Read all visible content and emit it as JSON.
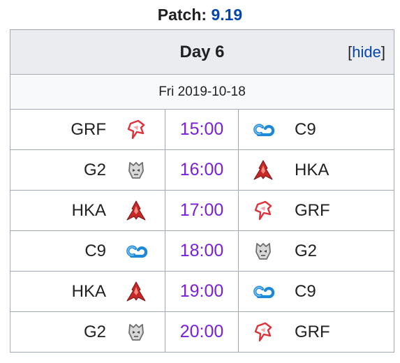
{
  "patch": {
    "label": "Patch:",
    "version": "9.19"
  },
  "header": {
    "day": "Day 6",
    "hide_open": "[",
    "hide_label": "hide",
    "hide_close": "]"
  },
  "date": "Fri 2019-10-18",
  "colors": {
    "link": "#0645ad",
    "time": "#7b1fd8",
    "header_bg": "#eaecf0",
    "border": "#a2a9b1"
  },
  "matches": [
    {
      "left": {
        "team": "GRF",
        "logo": "grf-logo-icon"
      },
      "time": "15:00",
      "right": {
        "team": "C9",
        "logo": "c9-logo-icon"
      }
    },
    {
      "left": {
        "team": "G2",
        "logo": "g2-logo-icon"
      },
      "time": "16:00",
      "right": {
        "team": "HKA",
        "logo": "hka-logo-icon"
      }
    },
    {
      "left": {
        "team": "HKA",
        "logo": "hka-logo-icon"
      },
      "time": "17:00",
      "right": {
        "team": "GRF",
        "logo": "grf-logo-icon"
      }
    },
    {
      "left": {
        "team": "C9",
        "logo": "c9-logo-icon"
      },
      "time": "18:00",
      "right": {
        "team": "G2",
        "logo": "g2-logo-icon"
      }
    },
    {
      "left": {
        "team": "HKA",
        "logo": "hka-logo-icon"
      },
      "time": "19:00",
      "right": {
        "team": "C9",
        "logo": "c9-logo-icon"
      }
    },
    {
      "left": {
        "team": "G2",
        "logo": "g2-logo-icon"
      },
      "time": "20:00",
      "right": {
        "team": "GRF",
        "logo": "grf-logo-icon"
      }
    }
  ]
}
